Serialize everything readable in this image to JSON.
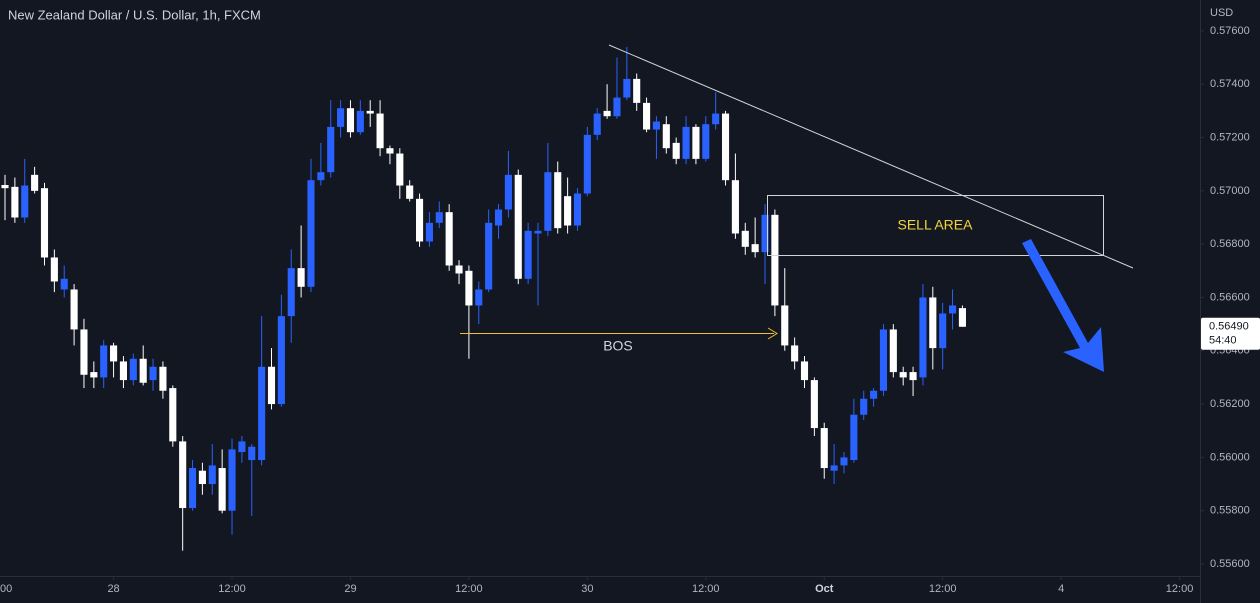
{
  "chart_data": {
    "type": "candlestick",
    "title": "New Zealand Dollar / U.S. Dollar, 1h, FXCM",
    "ylabel": "USD",
    "up_color": "#2962ff",
    "down_color": "#ffffff",
    "ylim": [
      0.55555,
      0.57716
    ],
    "yticks": [
      {
        "value": 0.576,
        "label": "0.57600"
      },
      {
        "value": 0.574,
        "label": "0.57400"
      },
      {
        "value": 0.572,
        "label": "0.57200"
      },
      {
        "value": 0.57,
        "label": "0.57000"
      },
      {
        "value": 0.568,
        "label": "0.56800"
      },
      {
        "value": 0.566,
        "label": "0.56600"
      },
      {
        "value": 0.564,
        "label": "0.56400"
      },
      {
        "value": 0.562,
        "label": "0.56200"
      },
      {
        "value": 0.56,
        "label": "0.56000"
      },
      {
        "value": 0.558,
        "label": "0.55800"
      },
      {
        "value": 0.556,
        "label": "0.55600"
      }
    ],
    "xlim": [
      -0.507,
      121.07
    ],
    "xticks": [
      {
        "value": -1,
        "label": "00"
      },
      {
        "value": 11,
        "label": "28"
      },
      {
        "value": 23,
        "label": "12:00"
      },
      {
        "value": 35,
        "label": "29"
      },
      {
        "value": 47,
        "label": "12:00"
      },
      {
        "value": 59,
        "label": "30"
      },
      {
        "value": 71,
        "label": "12:00"
      },
      {
        "value": 83,
        "label": "Oct"
      },
      {
        "value": 95,
        "label": "12:00"
      },
      {
        "value": 107,
        "label": "4"
      },
      {
        "value": 119,
        "label": "12:00"
      }
    ],
    "open": [
      0.57022,
      0.57015,
      0.569,
      0.5706,
      0.5701,
      0.5675,
      0.5663,
      0.5663,
      0.5648,
      0.5632,
      0.563,
      0.5642,
      0.5636,
      0.5629,
      0.5637,
      0.5629,
      0.5634,
      0.5626,
      0.5606,
      0.5581,
      0.5595,
      0.559,
      0.5596,
      0.558,
      0.5602,
      0.5599,
      0.5599,
      0.5634,
      0.562,
      0.5653,
      0.5671,
      0.5664,
      0.5704,
      0.5707,
      0.5724,
      0.5731,
      0.5722,
      0.573,
      0.5729,
      0.5716,
      0.5714,
      0.5702,
      0.5697,
      0.5681,
      0.5688,
      0.5692,
      0.5672,
      0.567,
      0.5657,
      0.5663,
      0.5687,
      0.5693,
      0.5706,
      0.5667,
      0.5684,
      0.5685,
      0.5707,
      0.5698,
      0.5687,
      0.5699,
      0.5721,
      0.573,
      0.5728,
      0.5735,
      0.5742,
      0.5733,
      0.5723,
      0.5725,
      0.5718,
      0.5712,
      0.5724,
      0.5712,
      0.5725,
      0.5729,
      0.5704,
      0.5685,
      0.568,
      0.5677,
      0.5691,
      0.5657,
      0.5642,
      0.5636,
      0.5629,
      0.5611,
      0.5595,
      0.5597,
      0.5599,
      0.5616,
      0.5622,
      0.5625,
      0.5648,
      0.5632,
      0.5632,
      0.563,
      0.566,
      0.5641,
      0.5654,
      0.5656
    ],
    "high": [
      0.5706,
      0.5705,
      0.5712,
      0.5709,
      0.5703,
      0.5678,
      0.5672,
      0.5665,
      0.5652,
      0.5636,
      0.5644,
      0.5643,
      0.5638,
      0.5639,
      0.5642,
      0.5637,
      0.5636,
      0.5627,
      0.5608,
      0.5599,
      0.5598,
      0.5605,
      0.5603,
      0.5607,
      0.5608,
      0.5605,
      0.5653,
      0.5641,
      0.5661,
      0.5678,
      0.5687,
      0.5712,
      0.5718,
      0.5734,
      0.5734,
      0.5734,
      0.5734,
      0.5734,
      0.5734,
      0.5717,
      0.5716,
      0.5704,
      0.5699,
      0.5692,
      0.5696,
      0.5695,
      0.5674,
      0.5672,
      0.5666,
      0.5693,
      0.5695,
      0.5715,
      0.5708,
      0.5688,
      0.5688,
      0.5718,
      0.5711,
      0.5705,
      0.5701,
      0.5724,
      0.5731,
      0.574,
      0.575,
      0.5754,
      0.5744,
      0.5735,
      0.5728,
      0.5728,
      0.572,
      0.5728,
      0.5725,
      0.5728,
      0.5737,
      0.573,
      0.5714,
      0.5688,
      0.569,
      0.5695,
      0.5693,
      0.5671,
      0.5645,
      0.5638,
      0.563,
      0.5613,
      0.5605,
      0.5602,
      0.5622,
      0.5625,
      0.5626,
      0.565,
      0.565,
      0.5634,
      0.5634,
      0.5665,
      0.5664,
      0.5658,
      0.5663,
      0.5657
    ],
    "low": [
      0.5689,
      0.5688,
      0.5688,
      0.5699,
      0.5672,
      0.5662,
      0.566,
      0.5642,
      0.5626,
      0.5626,
      0.5626,
      0.563,
      0.5626,
      0.5627,
      0.5627,
      0.5625,
      0.5622,
      0.5604,
      0.5565,
      0.558,
      0.5586,
      0.5586,
      0.5579,
      0.5571,
      0.5598,
      0.5578,
      0.5597,
      0.5618,
      0.5619,
      0.5643,
      0.566,
      0.5662,
      0.5702,
      0.5705,
      0.572,
      0.572,
      0.5721,
      0.5724,
      0.5713,
      0.571,
      0.5697,
      0.5696,
      0.5679,
      0.5679,
      0.5686,
      0.567,
      0.5665,
      0.5637,
      0.565,
      0.5662,
      0.5682,
      0.569,
      0.5665,
      0.5665,
      0.5657,
      0.5683,
      0.5684,
      0.5684,
      0.5685,
      0.5698,
      0.5719,
      0.5727,
      0.5727,
      0.5734,
      0.573,
      0.5722,
      0.5712,
      0.5714,
      0.571,
      0.571,
      0.571,
      0.5711,
      0.5723,
      0.5702,
      0.5682,
      0.5676,
      0.5675,
      0.5665,
      0.5653,
      0.564,
      0.5633,
      0.5626,
      0.5608,
      0.5592,
      0.559,
      0.5594,
      0.5598,
      0.5614,
      0.5619,
      0.5623,
      0.563,
      0.5627,
      0.5623,
      0.5627,
      0.5633,
      0.5633,
      0.5648,
      0.5649
    ],
    "close": [
      0.5701,
      0.569,
      0.5702,
      0.57,
      0.5675,
      0.5666,
      0.5667,
      0.5648,
      0.5631,
      0.563,
      0.5642,
      0.5636,
      0.5629,
      0.5637,
      0.5628,
      0.5634,
      0.5625,
      0.5606,
      0.5581,
      0.5596,
      0.559,
      0.5597,
      0.558,
      0.5603,
      0.5606,
      0.5604,
      0.5634,
      0.562,
      0.5653,
      0.5671,
      0.5664,
      0.5704,
      0.5707,
      0.5724,
      0.5731,
      0.5722,
      0.573,
      0.5729,
      0.5716,
      0.5714,
      0.5702,
      0.5697,
      0.5681,
      0.5688,
      0.5692,
      0.5672,
      0.5669,
      0.5657,
      0.5663,
      0.5688,
      0.5693,
      0.5706,
      0.5667,
      0.5685,
      0.5685,
      0.5707,
      0.5686,
      0.5687,
      0.5699,
      0.5721,
      0.5729,
      0.5728,
      0.5735,
      0.5742,
      0.5733,
      0.5723,
      0.5726,
      0.5716,
      0.5712,
      0.5724,
      0.5712,
      0.5725,
      0.5729,
      0.5704,
      0.5684,
      0.5679,
      0.5677,
      0.5691,
      0.5657,
      0.5642,
      0.5636,
      0.5629,
      0.5611,
      0.5596,
      0.5597,
      0.56,
      0.5616,
      0.5622,
      0.5625,
      0.5648,
      0.5632,
      0.563,
      0.5629,
      0.566,
      0.5641,
      0.5654,
      0.5657,
      0.5649
    ],
    "last_price": {
      "value": 0.5649,
      "label": "0.56490"
    },
    "countdown": "54:40",
    "annotations": [
      "BOS",
      "SELL AREA"
    ]
  }
}
